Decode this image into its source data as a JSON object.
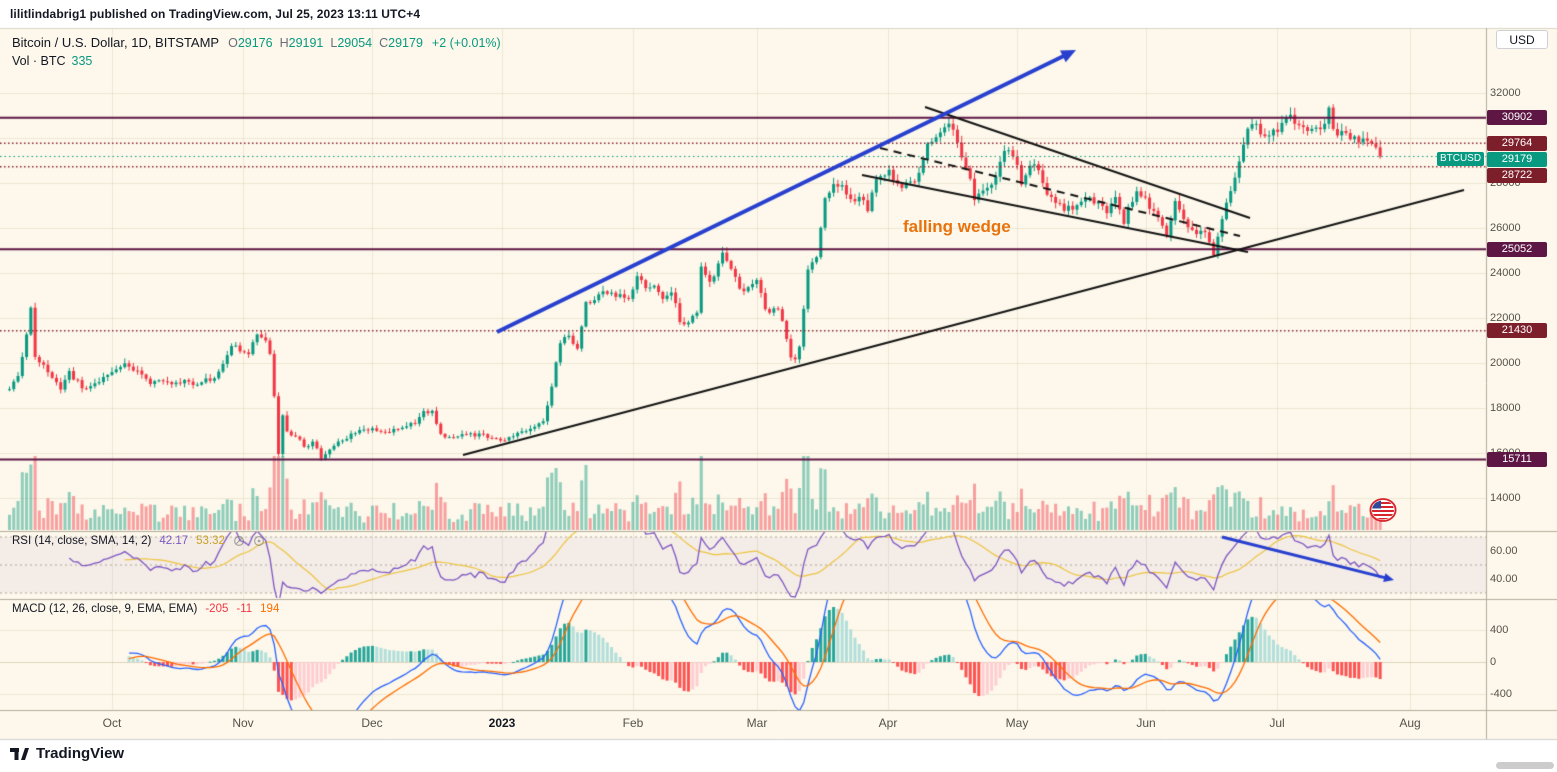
{
  "publish_bar": {
    "text": "lilitlindabrig1 published on TradingView.com, Jul 25, 2023 13:11 UTC+4"
  },
  "header": {
    "symbol_title": "Bitcoin / U.S. Dollar, 1D, BITSTAMP",
    "ohlc": {
      "o_label": "O",
      "o": "29176",
      "h_label": "H",
      "h": "29191",
      "l_label": "L",
      "l": "29054",
      "c_label": "C",
      "c": "29179",
      "change": "+2 (+0.01%)"
    },
    "volume_row": {
      "label": "Vol · BTC",
      "value": "335"
    },
    "currency_button": "USD"
  },
  "annotations": {
    "wedge_label": "falling wedge",
    "trend_arrow": "up",
    "rsi_arrow": "down"
  },
  "rsi_pane": {
    "title": "RSI (14, close, SMA, 14, 2)",
    "value_main": "42.17",
    "value_ma": "53.32",
    "scale_ticks": [
      60,
      40
    ]
  },
  "macd_pane": {
    "title": "MACD (12, 26, close, 9, EMA, EMA)",
    "value_hist": "-205",
    "value_macd": "-11",
    "value_signal": "194",
    "scale_ticks": [
      400,
      0,
      -400
    ]
  },
  "footer": {
    "brand": "TradingView"
  },
  "colors": {
    "up": "#089981",
    "down": "#F23645",
    "vol_up": "rgba(8,153,129,0.45)",
    "vol_down": "rgba(242,54,69,0.45)",
    "level_solid": "#5E1745",
    "level_dotted": "#8A2630",
    "current_line": "#089981",
    "arrow_blue": "#2840CF",
    "trend_black": "#141414",
    "wedge_text": "#E8720C",
    "rsi_line": "#7E57C2",
    "rsi_ma": "#EDC53F",
    "macd_line": "#2962FF",
    "macd_signal": "#FF6D00",
    "hist_pos_up": "#26A69A",
    "hist_pos_down": "#B2DFDB",
    "hist_neg_down": "#FF5252",
    "hist_neg_up": "#FFCDD2",
    "background": "#FDF8EB"
  },
  "chart_data": {
    "type": "candlestick",
    "symbol": "Bitcoin / U.S. Dollar",
    "ticker": "BTCUSD",
    "exchange": "BITSTAMP",
    "interval": "1D",
    "current_bar": {
      "open": 29176,
      "high": 29191,
      "low": 29054,
      "close": 29179,
      "change_abs": 2,
      "change_pct": 0.01
    },
    "volume_btc": 335,
    "price_axis_ticks": [
      32000,
      28000,
      26000,
      24000,
      22000,
      20000,
      18000,
      16000,
      14000
    ],
    "price_grid": [
      32000,
      30000,
      28000,
      26000,
      24000,
      22000,
      20000,
      18000,
      16000,
      14000
    ],
    "horizontal_levels": [
      {
        "price": 30902,
        "style": "solid"
      },
      {
        "price": 29764,
        "style": "dotted"
      },
      {
        "price": 28722,
        "style": "dotted"
      },
      {
        "price": 25052,
        "style": "solid"
      },
      {
        "price": 21430,
        "style": "dotted"
      },
      {
        "price": 15711,
        "style": "solid"
      }
    ],
    "current_price_line": 29179,
    "pattern_label": "falling wedge",
    "time_axis_labels": [
      "Oct",
      "Nov",
      "Dec",
      "2023",
      "Feb",
      "Mar",
      "Apr",
      "May",
      "Jun",
      "Jul",
      "Aug"
    ],
    "date_range": "Sep 2022 - Jul 25 2023",
    "daily_close_anchors": [
      [
        0,
        18800
      ],
      [
        2,
        19330
      ],
      [
        4,
        21360
      ],
      [
        5,
        22390
      ],
      [
        6,
        20170
      ],
      [
        9,
        19700
      ],
      [
        12,
        18850
      ],
      [
        14,
        19550
      ],
      [
        17,
        18900
      ],
      [
        20,
        19050
      ],
      [
        23,
        19430
      ],
      [
        24,
        19600
      ],
      [
        27,
        20000
      ],
      [
        30,
        19600
      ],
      [
        33,
        19100
      ],
      [
        36,
        19150
      ],
      [
        40,
        19200
      ],
      [
        43,
        19050
      ],
      [
        46,
        19200
      ],
      [
        49,
        19550
      ],
      [
        52,
        20750
      ],
      [
        54,
        20600
      ],
      [
        56,
        20450
      ],
      [
        58,
        21300
      ],
      [
        60,
        20900
      ],
      [
        61,
        20500
      ],
      [
        62,
        18540
      ],
      [
        63,
        15880
      ],
      [
        64,
        17570
      ],
      [
        65,
        16900
      ],
      [
        67,
        16700
      ],
      [
        69,
        16290
      ],
      [
        71,
        16450
      ],
      [
        73,
        15780
      ],
      [
        75,
        16220
      ],
      [
        78,
        16520
      ],
      [
        81,
        16970
      ],
      [
        84,
        17100
      ],
      [
        85,
        17090
      ],
      [
        88,
        16970
      ],
      [
        91,
        17090
      ],
      [
        94,
        17230
      ],
      [
        97,
        17780
      ],
      [
        99,
        17800
      ],
      [
        101,
        16820
      ],
      [
        104,
        16780
      ],
      [
        107,
        16840
      ],
      [
        110,
        16840
      ],
      [
        113,
        16600
      ],
      [
        115,
        16540
      ],
      [
        116,
        16620
      ],
      [
        119,
        16950
      ],
      [
        123,
        17130
      ],
      [
        125,
        17440
      ],
      [
        127,
        18850
      ],
      [
        129,
        20960
      ],
      [
        131,
        21190
      ],
      [
        133,
        20680
      ],
      [
        135,
        22670
      ],
      [
        137,
        22790
      ],
      [
        139,
        23060
      ],
      [
        141,
        23010
      ],
      [
        143,
        23080
      ],
      [
        145,
        22840
      ],
      [
        146,
        23130
      ],
      [
        147,
        23720
      ],
      [
        149,
        23430
      ],
      [
        151,
        23330
      ],
      [
        153,
        22760
      ],
      [
        155,
        23240
      ],
      [
        157,
        21790
      ],
      [
        159,
        21860
      ],
      [
        161,
        22200
      ],
      [
        162,
        24330
      ],
      [
        164,
        23590
      ],
      [
        166,
        24280
      ],
      [
        167,
        24850
      ],
      [
        169,
        24180
      ],
      [
        171,
        23190
      ],
      [
        174,
        23550
      ],
      [
        175,
        23640
      ],
      [
        177,
        22350
      ],
      [
        180,
        22430
      ],
      [
        183,
        20360
      ],
      [
        184,
        20150
      ],
      [
        185,
        20620
      ],
      [
        187,
        24120
      ],
      [
        189,
        24700
      ],
      [
        191,
        27390
      ],
      [
        193,
        27970
      ],
      [
        195,
        27820
      ],
      [
        197,
        27250
      ],
      [
        199,
        27460
      ],
      [
        201,
        26830
      ],
      [
        203,
        28350
      ],
      [
        205,
        28470
      ],
      [
        206,
        28450
      ],
      [
        208,
        27900
      ],
      [
        212,
        28050
      ],
      [
        215,
        29650
      ],
      [
        217,
        30230
      ],
      [
        219,
        30650
      ],
      [
        221,
        30300
      ],
      [
        224,
        28820
      ],
      [
        226,
        27270
      ],
      [
        228,
        27550
      ],
      [
        231,
        28300
      ],
      [
        233,
        29480
      ],
      [
        235,
        29250
      ],
      [
        237,
        28090
      ],
      [
        240,
        28850
      ],
      [
        243,
        27650
      ],
      [
        247,
        26800
      ],
      [
        250,
        26950
      ],
      [
        253,
        27400
      ],
      [
        257,
        26750
      ],
      [
        259,
        27220
      ],
      [
        261,
        26330
      ],
      [
        264,
        27740
      ],
      [
        266,
        27220
      ],
      [
        268,
        26820
      ],
      [
        271,
        25750
      ],
      [
        273,
        27240
      ],
      [
        275,
        26350
      ],
      [
        277,
        25850
      ],
      [
        280,
        25900
      ],
      [
        282,
        24840
      ],
      [
        284,
        26330
      ],
      [
        287,
        28320
      ],
      [
        289,
        29900
      ],
      [
        291,
        30700
      ],
      [
        293,
        30270
      ],
      [
        295,
        30080
      ],
      [
        297,
        30450
      ],
      [
        298,
        30600
      ],
      [
        300,
        31150
      ],
      [
        302,
        30500
      ],
      [
        304,
        30350
      ],
      [
        306,
        30420
      ],
      [
        308,
        30600
      ],
      [
        309,
        31300
      ],
      [
        310,
        30330
      ],
      [
        312,
        30230
      ],
      [
        314,
        29850
      ],
      [
        316,
        29910
      ],
      [
        318,
        30000
      ],
      [
        320,
        29750
      ],
      [
        321,
        29179
      ]
    ],
    "indicators": [
      {
        "name": "RSI",
        "params": "14, close, SMA, 14, 2",
        "values": [
          42.17,
          53.32
        ],
        "scale_ticks": [
          60,
          40
        ]
      },
      {
        "name": "MACD",
        "params": "12, 26, close, 9, EMA, EMA",
        "values": [
          -205,
          -11,
          194
        ],
        "scale_ticks": [
          400,
          0,
          -400
        ]
      }
    ]
  }
}
